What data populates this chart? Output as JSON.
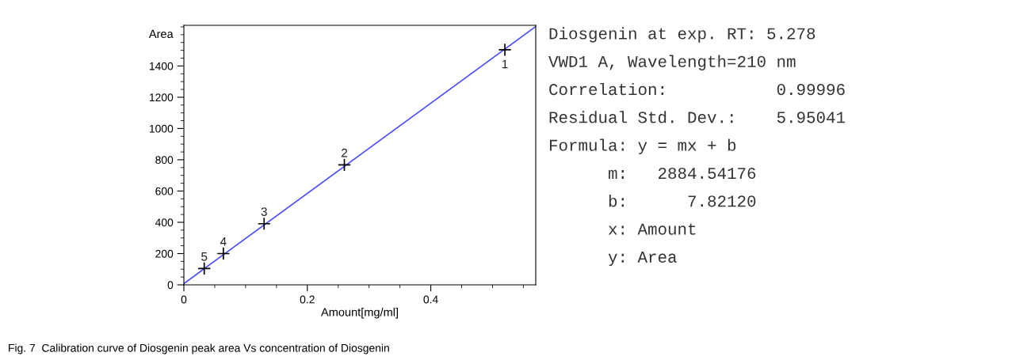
{
  "chart_data": {
    "type": "scatter",
    "xlabel": "Amount[mg/ml]",
    "ylabel": "Area",
    "xlim": [
      0,
      0.57
    ],
    "ylim": [
      0,
      1660
    ],
    "xticks": [
      0,
      0.2,
      0.4
    ],
    "yticks": [
      0,
      200,
      400,
      600,
      800,
      1000,
      1200,
      1400
    ],
    "grid": false,
    "marker": "cross",
    "series": [
      {
        "color": "#000000",
        "x": [
          0.52,
          0.26,
          0.13,
          0.064,
          0.033
        ],
        "values": [
          1504,
          767,
          391,
          200,
          104
        ]
      },
      {
        "type": "line",
        "color": "#4a4aff",
        "x": [
          0,
          0.57
        ],
        "values": [
          8,
          1652
        ],
        "marker": "none"
      }
    ],
    "annotations": [
      {
        "text": "1",
        "x": 0.52,
        "y": 1504
      },
      {
        "text": "2",
        "x": 0.26,
        "y": 767
      },
      {
        "text": "3",
        "x": 0.13,
        "y": 391
      },
      {
        "text": "4",
        "x": 0.064,
        "y": 200
      },
      {
        "text": "5",
        "x": 0.033,
        "y": 104
      },
      "Diosgenin at exp. RT: 5.278",
      "VWD1 A, Wavelength=210 nm",
      "Correlation:           0.99996",
      "Residual Std. Dev.:    5.95041",
      "Formula: y = mx + b",
      "      m:   2884.54176",
      "      b:      7.82120",
      "      x: Amount",
      "      y: Area",
      "Fig. 7  Calibration curve of Diosgenin peak area Vs concentration of Diosgenin"
    ]
  }
}
